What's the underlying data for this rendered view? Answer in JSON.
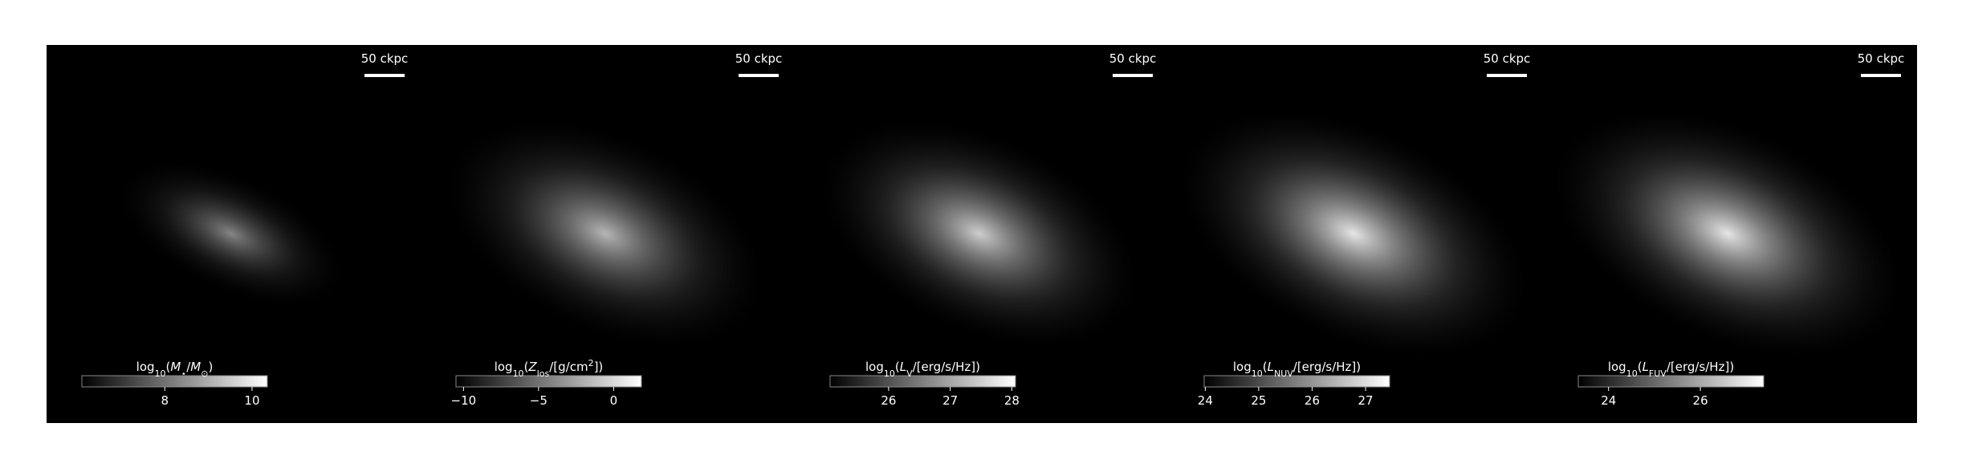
{
  "chart_data": [
    {
      "type": "image",
      "scale_bar_label": "50 ckpc",
      "colorbar": {
        "label": [
          {
            "text": "log"
          },
          {
            "text": "10",
            "sub": true
          },
          {
            "text": "("
          },
          {
            "text": "M",
            "italic": true
          },
          {
            "text": "⋆",
            "sub": true
          },
          {
            "text": "/"
          },
          {
            "text": "M",
            "italic": true
          },
          {
            "text": "⊙",
            "sub": true
          },
          {
            "text": ")"
          }
        ],
        "lim": [
          6.1,
          10.35
        ],
        "ticks": [
          8,
          10
        ]
      }
    },
    {
      "type": "image",
      "scale_bar_label": "50 ckpc",
      "colorbar": {
        "label": [
          {
            "text": "log"
          },
          {
            "text": "10",
            "sub": true
          },
          {
            "text": "("
          },
          {
            "text": "Z",
            "italic": true
          },
          {
            "text": "los",
            "sub": true
          },
          {
            "text": "/[g/cm"
          },
          {
            "text": "2",
            "sup": true
          },
          {
            "text": "])"
          }
        ],
        "lim": [
          -10.5,
          1.85
        ],
        "ticks": [
          {
            "value": -10,
            "label": "−10"
          },
          {
            "value": -5,
            "label": "−5"
          },
          0
        ]
      }
    },
    {
      "type": "image",
      "scale_bar_label": "50 ckpc",
      "colorbar": {
        "label": [
          {
            "text": "log"
          },
          {
            "text": "10",
            "sub": true
          },
          {
            "text": "("
          },
          {
            "text": "L",
            "italic": true
          },
          {
            "text": "V",
            "sub": true
          },
          {
            "text": "/[erg/s/Hz])"
          }
        ],
        "lim": [
          25.05,
          28.06
        ],
        "ticks": [
          26,
          27,
          28
        ]
      }
    },
    {
      "type": "image",
      "scale_bar_label": "50 ckpc",
      "colorbar": {
        "label": [
          {
            "text": "log"
          },
          {
            "text": "10",
            "sub": true
          },
          {
            "text": "("
          },
          {
            "text": "L",
            "italic": true
          },
          {
            "text": "NUV",
            "sub": true
          },
          {
            "text": "/[erg/s/Hz])"
          }
        ],
        "lim": [
          23.98,
          27.45
        ],
        "ticks": [
          24,
          25,
          26,
          27
        ]
      }
    },
    {
      "type": "image",
      "scale_bar_label": "50 ckpc",
      "colorbar": {
        "label": [
          {
            "text": "log"
          },
          {
            "text": "10",
            "sub": true
          },
          {
            "text": "("
          },
          {
            "text": "L",
            "italic": true
          },
          {
            "text": "FUV",
            "sub": true
          },
          {
            "text": "/[erg/s/Hz])"
          }
        ],
        "lim": [
          23.34,
          27.38
        ],
        "ticks": [
          24,
          26
        ]
      }
    }
  ]
}
